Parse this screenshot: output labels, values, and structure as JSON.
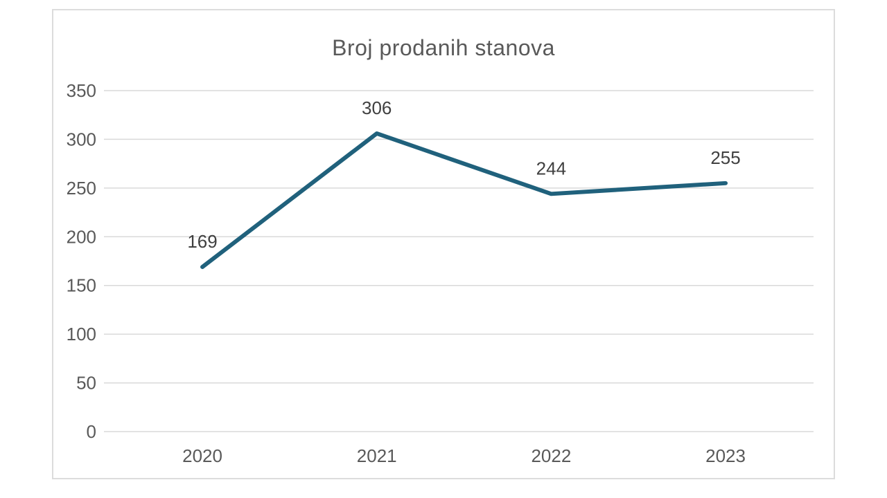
{
  "chart_data": {
    "type": "line",
    "title": "Broj prodanih stanova",
    "categories": [
      "2020",
      "2021",
      "2022",
      "2023"
    ],
    "values": [
      169,
      306,
      244,
      255
    ],
    "series": [
      {
        "name": "Broj prodanih stanova",
        "values": [
          169,
          306,
          244,
          255
        ]
      }
    ],
    "y_ticks": [
      0,
      50,
      100,
      150,
      200,
      250,
      300,
      350
    ],
    "ylim": [
      0,
      350
    ],
    "xlabel": "",
    "ylabel": "",
    "grid": true,
    "legend": "none",
    "data_labels": [
      169,
      306,
      244,
      255
    ],
    "colors": {
      "line": "#20617c",
      "title_text": "#595959",
      "axis_text": "#595959",
      "data_label_text": "#404040",
      "gridline": "#d9d9d9",
      "frame_border": "#dcdcdc",
      "background": "#ffffff"
    }
  }
}
